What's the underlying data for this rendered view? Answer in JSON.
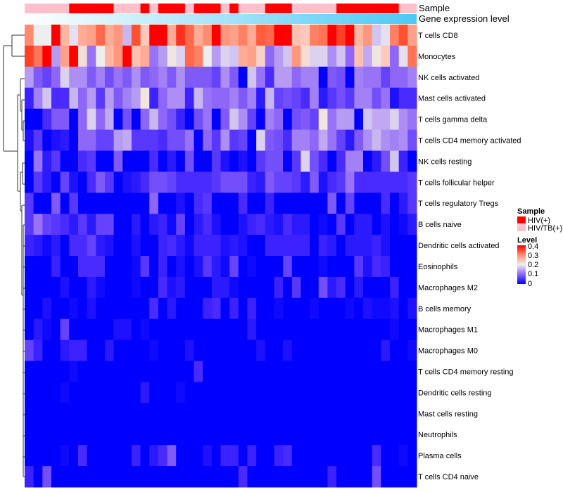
{
  "chart_data": {
    "type": "heatmap",
    "title": "",
    "annotations": {
      "sample": {
        "label": "Sample",
        "legend_title": "Sample",
        "levels": [
          "HIV(+)",
          "HIV/TB(+)"
        ],
        "colors": {
          "HIV(+)": "#FF0000",
          "HIV/TB(+)": "#FFC0CB"
        },
        "values": [
          "HIV/TB(+)",
          "HIV/TB(+)",
          "HIV/TB(+)",
          "HIV/TB(+)",
          "HIV/TB(+)",
          "HIV(+)",
          "HIV(+)",
          "HIV(+)",
          "HIV(+)",
          "HIV(+)",
          "HIV/TB(+)",
          "HIV/TB(+)",
          "HIV/TB(+)",
          "HIV(+)",
          "HIV/TB(+)",
          "HIV(+)",
          "HIV(+)",
          "HIV(+)",
          "HIV/TB(+)",
          "HIV(+)",
          "HIV(+)",
          "HIV(+)",
          "HIV/TB(+)",
          "HIV(+)",
          "HIV/TB(+)",
          "HIV/TB(+)",
          "HIV/TB(+)",
          "HIV(+)",
          "HIV(+)",
          "HIV(+)",
          "HIV/TB(+)",
          "HIV/TB(+)",
          "HIV/TB(+)",
          "HIV/TB(+)",
          "HIV/TB(+)",
          "HIV(+)",
          "HIV(+)",
          "HIV(+)",
          "HIV(+)",
          "HIV(+)",
          "HIV(+)",
          "HIV(+)",
          "HIV/TB(+)",
          "HIV/TB(+)"
        ]
      },
      "gene_expression": {
        "label": "Gene expression level",
        "low_color": "#FFFFFF",
        "high_color": "#4DC8F5"
      }
    },
    "color_scale": {
      "legend_title": "Level",
      "range": [
        0,
        0.4
      ],
      "ticks": [
        "0.4",
        "0.3",
        "0.2",
        "0.1",
        "0"
      ],
      "low": "#0000FF",
      "mid": "#EEEEEE",
      "high": "#FF0000"
    },
    "rows": [
      "T cells CD8",
      "Monocytes",
      "NK cells activated",
      "Mast cells activated",
      "T cells gamma delta",
      "T cells CD4 memory activated",
      "NK cells resting",
      "T cells follicular helper",
      "T cells regulatory  Tregs",
      "B cells naive",
      "Dendritic cells activated",
      "Eosinophils",
      "Macrophages M2",
      "B cells memory",
      "Macrophages M1",
      "Macrophages M0",
      "T cells CD4 memory resting",
      "Dendritic cells resting",
      "Mast cells resting",
      "Neutrophils",
      "Plasma cells",
      "T cells CD4 naive"
    ],
    "values": [
      [
        0.3,
        0.2,
        0.2,
        0.4,
        0.26,
        0.19,
        0.27,
        0.28,
        0.33,
        0.27,
        0.29,
        0.16,
        0.35,
        0.24,
        0.4,
        0.4,
        0.27,
        0.37,
        0.33,
        0.27,
        0.3,
        0.4,
        0.29,
        0.28,
        0.31,
        0.27,
        0.34,
        0.33,
        0.4,
        0.4,
        0.25,
        0.24,
        0.31,
        0.32,
        0.4,
        0.36,
        0.4,
        0.26,
        0.29,
        0.17,
        0.19,
        0.31,
        0.35,
        0.28
      ],
      [
        0.36,
        0.32,
        0.4,
        0.14,
        0.28,
        0.4,
        0.22,
        0.11,
        0.2,
        0.26,
        0.29,
        0.4,
        0.25,
        0.27,
        0.11,
        0.14,
        0.21,
        0.18,
        0.33,
        0.31,
        0.2,
        0.14,
        0.18,
        0.17,
        0.27,
        0.28,
        0.23,
        0.1,
        0.14,
        0.17,
        0.29,
        0.22,
        0.18,
        0.18,
        0.13,
        0.17,
        0.1,
        0.25,
        0.15,
        0.21,
        0.24,
        0.1,
        0.19,
        0.32
      ],
      [
        0.14,
        0.09,
        0.07,
        0.1,
        0.18,
        0.13,
        0.13,
        0.09,
        0.12,
        0.08,
        0.11,
        0.09,
        0.13,
        0.09,
        0.1,
        0.12,
        0.09,
        0.13,
        0.09,
        0.09,
        0.09,
        0.07,
        0.13,
        0.09,
        0,
        0.17,
        0.11,
        0.05,
        0.14,
        0.14,
        0.1,
        0.12,
        0.12,
        0,
        0.09,
        0.08,
        0,
        0.12,
        0.11,
        0.11,
        0.07,
        0.1,
        0.1,
        0.12
      ],
      [
        0.04,
        0.12,
        0.17,
        0.05,
        0.05,
        0.16,
        0.1,
        0.14,
        0.06,
        0.14,
        0.09,
        0.12,
        0.14,
        0.21,
        0.04,
        0.1,
        0.13,
        0.13,
        0.04,
        0.16,
        0.11,
        0.1,
        0.1,
        0.12,
        0.09,
        0.12,
        0.03,
        0.16,
        0.07,
        0.08,
        0.07,
        0.05,
        0.12,
        0.03,
        0.06,
        0.08,
        0.06,
        0.12,
        0.12,
        0.08,
        0.11,
        0.02,
        0.05,
        0.05
      ],
      [
        0,
        0,
        0.05,
        0.09,
        0.09,
        0,
        0.1,
        0.18,
        0.1,
        0.15,
        0,
        0.08,
        0,
        0.1,
        0.16,
        0.1,
        0.08,
        0.04,
        0,
        0.08,
        0.11,
        0,
        0.09,
        0.17,
        0.13,
        0.07,
        0,
        0.12,
        0.1,
        0,
        0.08,
        0.09,
        0.07,
        0.21,
        0.11,
        0.14,
        0.14,
        0,
        0.17,
        0.15,
        0.15,
        0.18,
        0.13,
        0.11
      ],
      [
        0.02,
        0.06,
        0,
        0.02,
        0.03,
        0,
        0.1,
        0.1,
        0.07,
        0.07,
        0.14,
        0.15,
        0.06,
        0.06,
        0.06,
        0.05,
        0.08,
        0.08,
        0.11,
        0,
        0.1,
        0.06,
        0.13,
        0.06,
        0.07,
        0,
        0.18,
        0.09,
        0.08,
        0.05,
        0.12,
        0.12,
        0.1,
        0.15,
        0.11,
        0.07,
        0.03,
        0.09,
        0.13,
        0.16,
        0.13,
        0.12,
        0.13,
        0.08
      ],
      [
        0,
        0.11,
        0.03,
        0.06,
        0,
        0,
        0.05,
        0.06,
        0,
        0,
        0.09,
        0,
        0,
        0,
        0.05,
        0,
        0.03,
        0,
        0.08,
        0,
        0,
        0.06,
        0.02,
        0,
        0.02,
        0,
        0.06,
        0.08,
        0.08,
        0,
        0.06,
        0.18,
        0.08,
        0.05,
        0,
        0.05,
        0.12,
        0.12,
        0,
        0.03,
        0.08,
        0.17,
        0.04,
        0
      ],
      [
        0,
        0.06,
        0.03,
        0,
        0.07,
        0.02,
        0,
        0.05,
        0.09,
        0.06,
        0,
        0.02,
        0.03,
        0.05,
        0.08,
        0.08,
        0.07,
        0.05,
        0.05,
        0.05,
        0.05,
        0.06,
        0.08,
        0.08,
        0.08,
        0.04,
        0.03,
        0.09,
        0.07,
        0.07,
        0.06,
        0.03,
        0.09,
        0.02,
        0.05,
        0.06,
        0.11,
        0.05,
        0.05,
        0.05,
        0.05,
        0.05,
        0.05,
        0.06
      ],
      [
        0.06,
        0,
        0,
        0.09,
        0,
        0.06,
        0,
        0,
        0,
        0,
        0,
        0,
        0,
        0,
        0.1,
        0,
        0,
        0.02,
        0,
        0.05,
        0.06,
        0,
        0,
        0,
        0.05,
        0,
        0,
        0.04,
        0,
        0,
        0,
        0,
        0,
        0,
        0.09,
        0,
        0.07,
        0,
        0,
        0,
        0.05,
        0,
        0.03,
        0.06
      ],
      [
        0.06,
        0.11,
        0.07,
        0.06,
        0.05,
        0.03,
        0.06,
        0.03,
        0.07,
        0.07,
        0,
        0,
        0.03,
        0,
        0.03,
        0.04,
        0.01,
        0.07,
        0,
        0.03,
        0.05,
        0.02,
        0,
        0,
        0.02,
        0.04,
        0.05,
        0.03,
        0.02,
        0.05,
        0.03,
        0.03,
        0,
        0.01,
        0,
        0.06,
        0,
        0.03,
        0.03,
        0,
        0.02,
        0,
        0.01,
        0.03
      ],
      [
        0.04,
        0.03,
        0.01,
        0.03,
        0,
        0.05,
        0.05,
        0.07,
        0.03,
        0.02,
        0,
        0,
        0.02,
        0,
        0,
        0.04,
        0.05,
        0.03,
        0.01,
        0.04,
        0.04,
        0.04,
        0.02,
        0.03,
        0.02,
        0,
        0,
        0.04,
        0.04,
        0.04,
        0.04,
        0.04,
        0,
        0.04,
        0.03,
        0,
        0.03,
        0.03,
        0.03,
        0.04,
        0.02,
        0,
        0,
        0
      ],
      [
        0,
        0,
        0,
        0.04,
        0,
        0,
        0.05,
        0.05,
        0.05,
        0,
        0,
        0,
        0.01,
        0.06,
        0,
        0.04,
        0,
        0.02,
        0,
        0.02,
        0.06,
        0.03,
        0.01,
        0.07,
        0,
        0.01,
        0,
        0,
        0,
        0.07,
        0,
        0,
        0,
        0.01,
        0,
        0,
        0,
        0.06,
        0.02,
        0.05,
        0.04,
        0,
        0,
        0
      ],
      [
        0,
        0,
        0,
        0,
        0.02,
        0,
        0,
        0.03,
        0.01,
        0,
        0,
        0,
        0.01,
        0,
        0,
        0.05,
        0.02,
        0.03,
        0,
        0,
        0,
        0.03,
        0.03,
        0.01,
        0,
        0,
        0,
        0,
        0.04,
        0,
        0.06,
        0,
        0,
        0.08,
        0.03,
        0.05,
        0,
        0.03,
        0,
        0,
        0,
        0.04,
        0,
        0
      ],
      [
        0,
        0,
        0.02,
        0,
        0,
        0.01,
        0,
        0.02,
        0,
        0,
        0,
        0,
        0,
        0,
        0.05,
        0,
        0.03,
        0,
        0,
        0,
        0.04,
        0.05,
        0,
        0.04,
        0,
        0.04,
        0,
        0,
        0.01,
        0,
        0,
        0,
        0.01,
        0,
        0,
        0,
        0.01,
        0,
        0.02,
        0.01,
        0.01,
        0.02,
        0,
        0.02
      ],
      [
        0,
        0.03,
        0.01,
        0,
        0.07,
        0,
        0,
        0,
        0,
        0,
        0.02,
        0.02,
        0,
        0.01,
        0,
        0,
        0,
        0,
        0,
        0,
        0,
        0,
        0,
        0,
        0,
        0.03,
        0,
        0,
        0,
        0,
        0,
        0,
        0,
        0,
        0,
        0,
        0,
        0,
        0,
        0,
        0,
        0.01,
        0,
        0
      ],
      [
        0.07,
        0.04,
        0,
        0,
        0.03,
        0.04,
        0.04,
        0,
        0,
        0.03,
        0,
        0,
        0,
        0,
        0.01,
        0,
        0,
        0,
        0.02,
        0,
        0,
        0,
        0,
        0,
        0,
        0,
        0.02,
        0,
        0,
        0.02,
        0,
        0,
        0,
        0,
        0,
        0,
        0,
        0,
        0,
        0,
        0.03,
        0,
        0,
        0.01
      ],
      [
        0,
        0,
        0,
        0,
        0,
        0.01,
        0,
        0,
        0,
        0,
        0,
        0,
        0,
        0,
        0,
        0,
        0,
        0,
        0,
        0.05,
        0,
        0,
        0,
        0,
        0,
        0,
        0,
        0,
        0,
        0,
        0,
        0,
        0,
        0,
        0,
        0,
        0,
        0,
        0,
        0,
        0,
        0,
        0,
        0
      ],
      [
        0,
        0,
        0,
        0,
        0.01,
        0,
        0,
        0,
        0,
        0,
        0,
        0,
        0,
        0.03,
        0,
        0,
        0,
        0.01,
        0,
        0,
        0,
        0,
        0,
        0,
        0,
        0,
        0,
        0,
        0,
        0,
        0,
        0,
        0,
        0,
        0,
        0,
        0,
        0,
        0,
        0,
        0,
        0,
        0,
        0
      ],
      [
        0,
        0,
        0,
        0,
        0,
        0,
        0,
        0,
        0,
        0,
        0,
        0,
        0,
        0,
        0,
        0,
        0,
        0,
        0,
        0,
        0,
        0,
        0,
        0,
        0,
        0,
        0,
        0,
        0,
        0,
        0,
        0,
        0,
        0,
        0,
        0,
        0,
        0,
        0,
        0,
        0,
        0,
        0,
        0
      ],
      [
        0,
        0,
        0,
        0,
        0,
        0,
        0,
        0,
        0,
        0,
        0,
        0,
        0,
        0,
        0,
        0,
        0,
        0,
        0,
        0,
        0,
        0,
        0,
        0,
        0,
        0,
        0,
        0,
        0,
        0,
        0,
        0,
        0,
        0,
        0,
        0,
        0,
        0,
        0,
        0,
        0,
        0,
        0,
        0
      ],
      [
        0,
        0,
        0,
        0,
        0.01,
        0,
        0.05,
        0,
        0,
        0,
        0,
        0,
        0.04,
        0,
        0.03,
        0.05,
        0.09,
        0,
        0,
        0,
        0.02,
        0,
        0.04,
        0.04,
        0,
        0.04,
        0,
        0,
        0.04,
        0.05,
        0,
        0,
        0,
        0,
        0,
        0,
        0,
        0,
        0,
        0.05,
        0,
        0,
        0.01,
        0
      ],
      [
        0.04,
        0,
        0.08,
        0,
        0,
        0,
        0,
        0,
        0,
        0,
        0,
        0,
        0,
        0,
        0,
        0,
        0,
        0,
        0,
        0,
        0,
        0,
        0,
        0,
        0.05,
        0,
        0,
        0,
        0,
        0,
        0,
        0,
        0,
        0,
        0.04,
        0,
        0,
        0,
        0,
        0.08,
        0,
        0,
        0,
        0
      ]
    ]
  }
}
